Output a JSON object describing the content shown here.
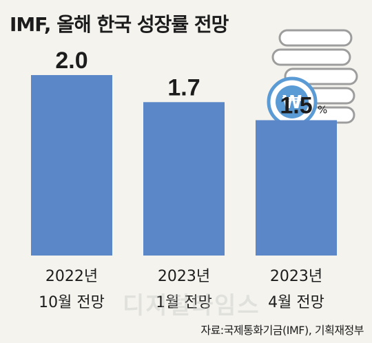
{
  "header": {
    "title": "IMF, 올해 한국 성장률 전망"
  },
  "chart_data": {
    "type": "bar",
    "categories": [
      "2022년\n10월 전망",
      "2023년\n1월 전망",
      "2023년\n4월 전망"
    ],
    "values": [
      2.0,
      1.7,
      1.5
    ],
    "value_labels": [
      "2.0",
      "1.7",
      "1.5"
    ],
    "unit": "%",
    "title": "IMF, 올해 한국 성장률 전망",
    "xlabel": "",
    "ylabel": "",
    "ylim": [
      0,
      2.0
    ],
    "grid": false,
    "legend": "none",
    "bar_color": "#5b87c8"
  },
  "icon": {
    "name": "won-coin-stack-icon",
    "symbol": "₩",
    "color": "#5b9bd5"
  },
  "footer": {
    "source": "자료:국제통화기금(IMF), 기획재정부"
  },
  "watermark": {
    "text": "디지털타임스"
  }
}
